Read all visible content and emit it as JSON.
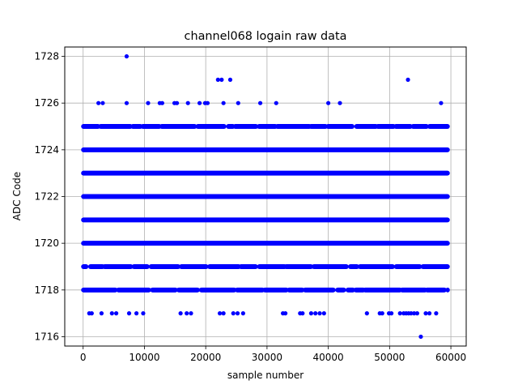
{
  "chart_data": {
    "type": "scatter",
    "title": "channel068 logain raw data",
    "xlabel": "sample number",
    "ylabel": "ADC Code",
    "xlim": [
      -3000,
      62500
    ],
    "ylim": [
      1715.6,
      1728.4
    ],
    "x_ticks": [
      0,
      10000,
      20000,
      30000,
      40000,
      50000,
      60000
    ],
    "x_tick_labels": [
      "0",
      "10000",
      "20000",
      "30000",
      "40000",
      "50000",
      "60000"
    ],
    "y_ticks": [
      1716,
      1718,
      1720,
      1722,
      1724,
      1726,
      1728
    ],
    "y_tick_labels": [
      "1716",
      "1718",
      "1720",
      "1722",
      "1724",
      "1726",
      "1728"
    ],
    "grid": true,
    "marker_color": "#0000ff",
    "x_range": [
      0,
      59500
    ],
    "dense_levels": [
      1720,
      1721,
      1722,
      1723,
      1724
    ],
    "semi_dense_levels": [
      1719,
      1725,
      1718
    ],
    "series": [
      {
        "points": [
          [
            7100,
            1728
          ],
          [
            22000,
            1727
          ],
          [
            22600,
            1727
          ],
          [
            24000,
            1727
          ],
          [
            53000,
            1727
          ],
          [
            2500,
            1726
          ],
          [
            3200,
            1726
          ],
          [
            7100,
            1726
          ],
          [
            10600,
            1726
          ],
          [
            12500,
            1726
          ],
          [
            12900,
            1726
          ],
          [
            14900,
            1726
          ],
          [
            15300,
            1726
          ],
          [
            17100,
            1726
          ],
          [
            19000,
            1726
          ],
          [
            19900,
            1726
          ],
          [
            20300,
            1726
          ],
          [
            22900,
            1726
          ],
          [
            25300,
            1726
          ],
          [
            28900,
            1726
          ],
          [
            31500,
            1726
          ],
          [
            40000,
            1726
          ],
          [
            41900,
            1726
          ],
          [
            58400,
            1726
          ],
          [
            1000,
            1717
          ],
          [
            1400,
            1717
          ],
          [
            3000,
            1717
          ],
          [
            4700,
            1717
          ],
          [
            5400,
            1717
          ],
          [
            7500,
            1717
          ],
          [
            8700,
            1717
          ],
          [
            9800,
            1717
          ],
          [
            15900,
            1717
          ],
          [
            16900,
            1717
          ],
          [
            17600,
            1717
          ],
          [
            22300,
            1717
          ],
          [
            22900,
            1717
          ],
          [
            24500,
            1717
          ],
          [
            25200,
            1717
          ],
          [
            26100,
            1717
          ],
          [
            32600,
            1717
          ],
          [
            33000,
            1717
          ],
          [
            35400,
            1717
          ],
          [
            35800,
            1717
          ],
          [
            37200,
            1717
          ],
          [
            37900,
            1717
          ],
          [
            38600,
            1717
          ],
          [
            39300,
            1717
          ],
          [
            46300,
            1717
          ],
          [
            48400,
            1717
          ],
          [
            48800,
            1717
          ],
          [
            49900,
            1717
          ],
          [
            50300,
            1717
          ],
          [
            51700,
            1717
          ],
          [
            52300,
            1717
          ],
          [
            52700,
            1717
          ],
          [
            53100,
            1717
          ],
          [
            53500,
            1717
          ],
          [
            54000,
            1717
          ],
          [
            54500,
            1717
          ],
          [
            55900,
            1717
          ],
          [
            56500,
            1717
          ],
          [
            57600,
            1717
          ],
          [
            55100,
            1716
          ]
        ]
      }
    ]
  }
}
